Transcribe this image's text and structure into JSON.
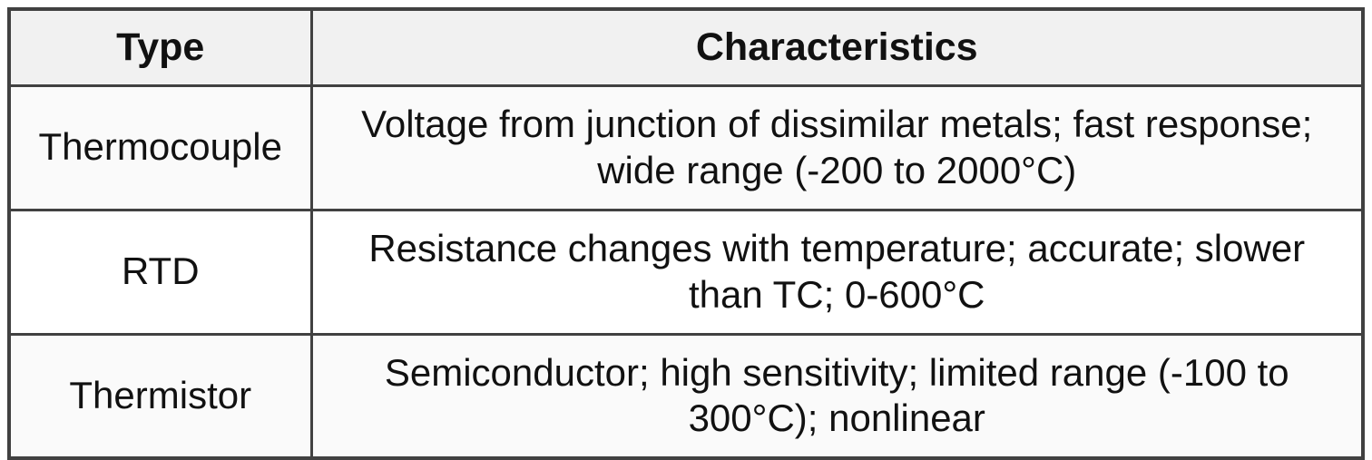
{
  "chart_data": {
    "type": "table",
    "columns": [
      "Type",
      "Characteristics"
    ],
    "rows": [
      [
        "Thermocouple",
        "Voltage from junction of dissimilar metals; fast response; wide range (-200 to 2000°C)"
      ],
      [
        "RTD",
        "Resistance changes with temperature; accurate; slower than TC; 0-600°C"
      ],
      [
        "Thermistor",
        "Semiconductor; high sensitivity; limited range (-100 to 300°C); nonlinear"
      ]
    ]
  },
  "theme": {
    "border_color": "#414141",
    "header_bg": "#f1f1f1",
    "row_odd_bg": "#fafafa",
    "row_even_bg": "#ffffff",
    "text_color": "#111111",
    "page_bg": "#ffffff"
  }
}
